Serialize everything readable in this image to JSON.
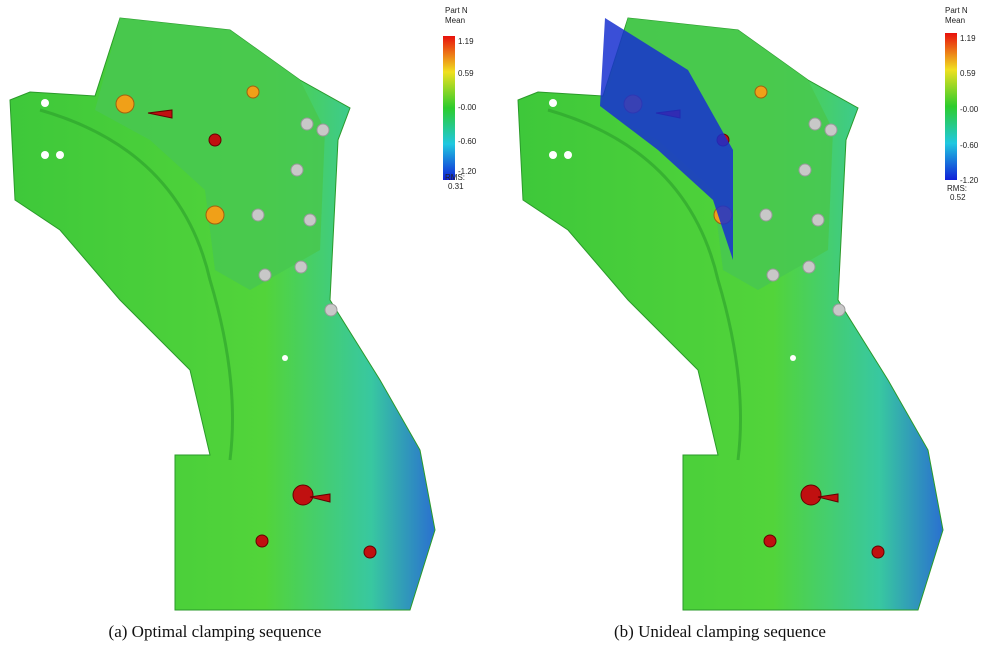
{
  "panels": [
    {
      "legend_title": "Part N",
      "legend_subtitle": "Mean",
      "ticks": [
        "1.19",
        "0.59",
        "-0.00",
        "-0.60",
        "-1.20"
      ],
      "rms_label": "RMS:",
      "rms_value": "0.31",
      "caption": "(a)  Optimal clamping sequence"
    },
    {
      "legend_title": "Part N",
      "legend_subtitle": "Mean",
      "ticks": [
        "1.19",
        "0.59",
        "-0.00",
        "-0.60",
        "-1.20"
      ],
      "rms_label": "RMS:",
      "rms_value": "0.52",
      "caption": "(b)  Unideal clamping sequence"
    }
  ]
}
